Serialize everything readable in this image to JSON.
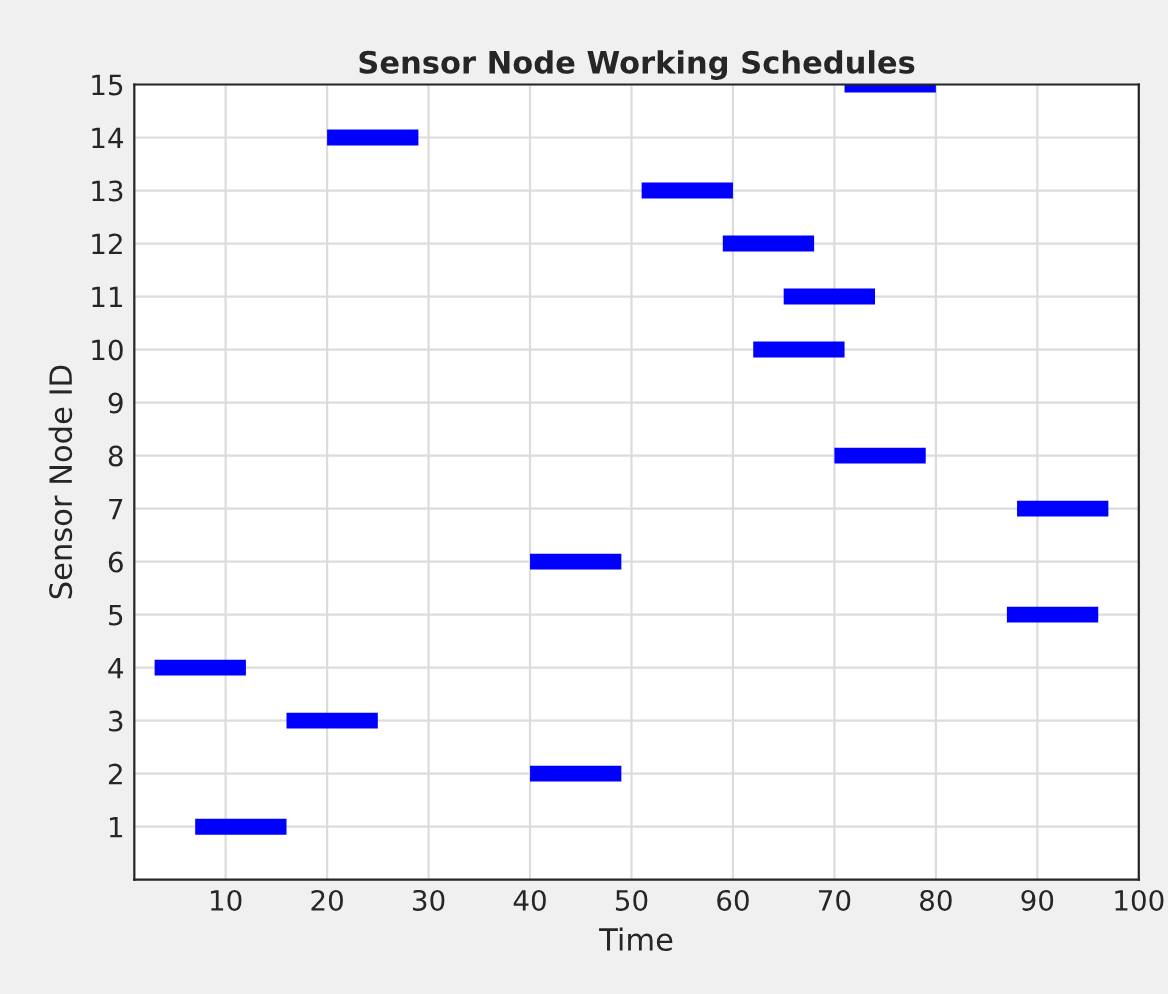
{
  "chart_data": {
    "type": "bar",
    "orientation": "horizontal",
    "title": "Sensor Node Working Schedules",
    "xlabel": "Time",
    "ylabel": "Sensor Node ID",
    "categories": [
      "15",
      "14",
      "13",
      "12",
      "11",
      "10",
      "9",
      "8",
      "7",
      "6",
      "5",
      "4",
      "3",
      "2",
      "1"
    ],
    "base": [
      71,
      20,
      51,
      59,
      65,
      62,
      null,
      70,
      88,
      40,
      87,
      3,
      16,
      40,
      7
    ],
    "values": [
      9,
      9,
      9,
      9,
      9,
      9,
      null,
      9,
      9,
      9,
      9,
      9,
      9,
      9,
      9
    ],
    "color": "#0000ff",
    "xlim": [
      1,
      100
    ],
    "xticks": [
      10,
      20,
      30,
      40,
      50,
      60,
      70,
      80,
      90,
      100
    ],
    "grid": true
  }
}
